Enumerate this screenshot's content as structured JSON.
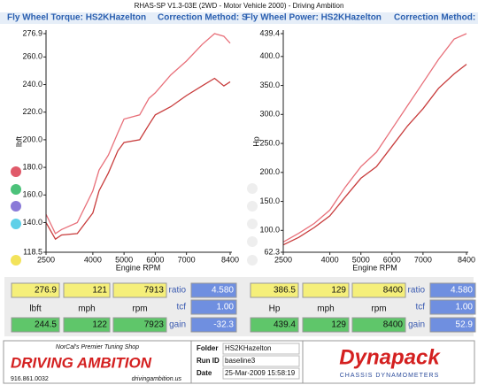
{
  "header": {
    "title": "RHAS-SP V1.3-03E  (2WD - Motor Vehicle 2000) - Driving Ambition"
  },
  "chart_data": [
    {
      "type": "line",
      "title": "Fly Wheel Torque: HS2KHazelton",
      "subtitle": "Correction Method: S",
      "x_label": "Engine RPM",
      "y_label": "lbft",
      "xlim": [
        2500,
        8400
      ],
      "ylim": [
        118.5,
        276.9
      ],
      "xticks": [
        2500,
        4000,
        5000,
        6000,
        7000,
        8400
      ],
      "yticks": [
        276.9,
        {
          "value": 260,
          "label": "260.0"
        },
        {
          "value": 240,
          "label": "240.0"
        },
        {
          "value": 220,
          "label": "220.0"
        },
        {
          "value": 200,
          "label": "200.0"
        },
        {
          "value": 180,
          "label": "180.0"
        },
        {
          "value": 160,
          "label": "160.0"
        },
        {
          "value": 140,
          "label": "140.0"
        },
        118.5
      ],
      "x": [
        2500,
        2800,
        3000,
        3500,
        4000,
        4200,
        4500,
        4800,
        5000,
        5500,
        5800,
        6000,
        6500,
        7000,
        7500,
        7900,
        8200,
        8400
      ],
      "series": [
        {
          "color": "#e8707a",
          "values": [
            146,
            132,
            135,
            140,
            163,
            178,
            189,
            205,
            215,
            218,
            230,
            234,
            247,
            257,
            269,
            276.9,
            275,
            270
          ]
        },
        {
          "color": "#c83c3c",
          "values": [
            140,
            128,
            131,
            132,
            147,
            163,
            176,
            192,
            198,
            200,
            211,
            218,
            224,
            232,
            239,
            244.5,
            239,
            242
          ]
        }
      ]
    },
    {
      "type": "line",
      "title": "Fly Wheel Power: HS2KHazelton",
      "subtitle": "Correction Method: S",
      "x_label": "Engine RPM",
      "y_label": "Hp",
      "xlim": [
        2500,
        8400
      ],
      "ylim": [
        62.3,
        439.4
      ],
      "xticks": [
        2500,
        4000,
        5000,
        6000,
        7000,
        8400
      ],
      "yticks": [
        439.4,
        {
          "value": 400,
          "label": "400.0"
        },
        {
          "value": 350,
          "label": "350.0"
        },
        {
          "value": 300,
          "label": "300.0"
        },
        {
          "value": 250,
          "label": "250.0"
        },
        {
          "value": 200,
          "label": "200.0"
        },
        {
          "value": 150,
          "label": "150.0"
        },
        {
          "value": 100,
          "label": "100.0"
        },
        62.3
      ],
      "x": [
        2500,
        3000,
        3500,
        4000,
        4500,
        5000,
        5500,
        6000,
        6500,
        7000,
        7500,
        8000,
        8400
      ],
      "series": [
        {
          "color": "#e8707a",
          "values": [
            80,
            95,
            112,
            135,
            175,
            210,
            235,
            275,
            315,
            355,
            395,
            430,
            439.4
          ]
        },
        {
          "color": "#c83c3c",
          "values": [
            75,
            88,
            105,
            125,
            158,
            190,
            210,
            245,
            280,
            310,
            345,
            370,
            386.5
          ]
        }
      ]
    }
  ],
  "readouts": [
    {
      "top": [
        "276.9",
        "121",
        "7913"
      ],
      "units": [
        "lbft",
        "mph",
        "rpm"
      ],
      "bottom": [
        "244.5",
        "122",
        "7923"
      ],
      "labels": [
        "ratio",
        "tcf",
        "gain"
      ],
      "factors": [
        "4.580",
        "1.00",
        "-32.3"
      ]
    },
    {
      "top": [
        "386.5",
        "129",
        "8400"
      ],
      "units": [
        "Hp",
        "mph",
        "rpm"
      ],
      "bottom": [
        "439.4",
        "129",
        "8400"
      ],
      "labels": [
        "ratio",
        "tcf",
        "gain"
      ],
      "factors": [
        "4.580",
        "1.00",
        "52.9"
      ]
    }
  ],
  "footer": {
    "tagline": "NorCal's Premier Tuning Shop",
    "shop_name": "DRIVING AMBITION",
    "phone": "916.861.0032",
    "website": "drivingambition.us",
    "info": [
      [
        "Folder",
        "HS2KHazelton"
      ],
      [
        "Run ID",
        "baseline3"
      ],
      [
        "Date",
        "25-Mar-2009  15:58:19"
      ]
    ],
    "brand": "Dynapack",
    "brand_sub": "CHASSIS DYNAMOMETERS"
  }
}
